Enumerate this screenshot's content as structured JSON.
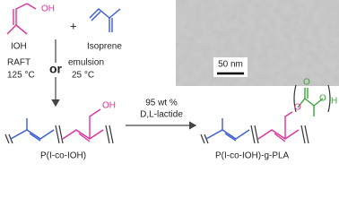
{
  "reactants": {
    "monomer1": {
      "label": "IOH",
      "group": "OH"
    },
    "plus": "+",
    "monomer2": {
      "label": "Isoprene"
    }
  },
  "conditions": {
    "left": [
      "RAFT",
      "125 °C"
    ],
    "or": "or",
    "right": [
      "emulsion",
      "25 °C"
    ]
  },
  "step2": {
    "line1": "95 wt %",
    "line2": "D,L-lactide"
  },
  "products": {
    "copolymer": {
      "label": "P(I-co-IOH)",
      "group": "OH"
    },
    "graft": {
      "label": "P(I-co-IOH)-g-PLA",
      "atoms": [
        "O",
        "O",
        "O",
        "H"
      ]
    }
  },
  "image": {
    "scale_bar": "50 nm"
  }
}
